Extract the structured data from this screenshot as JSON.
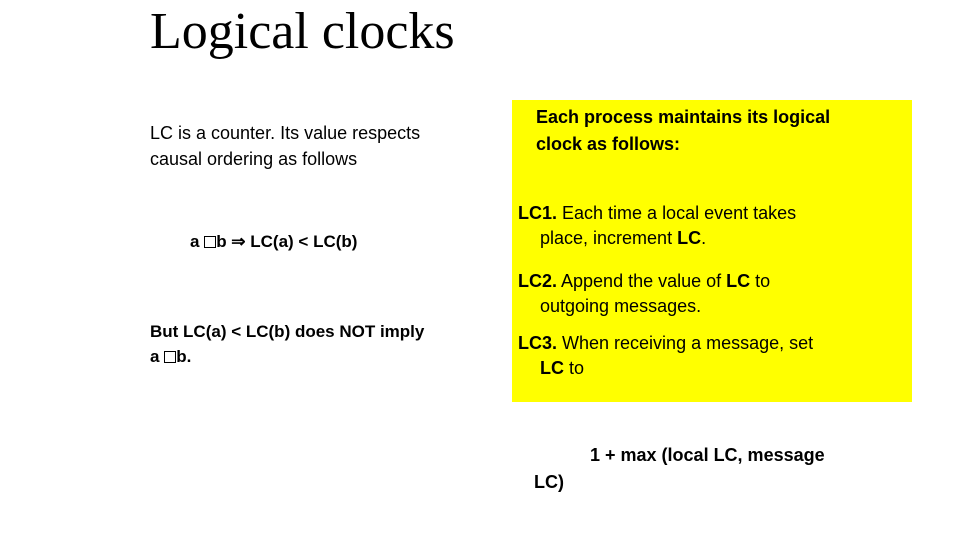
{
  "title": "Logical clocks",
  "left": {
    "intro_line1": "LC is a counter. Its value respects",
    "intro_line2": "causal ordering as follows",
    "formula_a": "a ",
    "formula_b": "b ⇒ LC(a) < LC(b)",
    "caveat_line1": "But LC(a) < LC(b) does NOT imply",
    "caveat_a": "a ",
    "caveat_b": "b."
  },
  "right": {
    "intro": "Each process maintains its logical clock as follows:",
    "rule1_label": "LC1.",
    "rule1_text_a": "  Each time a local event takes",
    "rule1_text_b_prefix": "place, increment ",
    "rule1_text_b_lc": "LC",
    "rule1_text_b_suffix": ".",
    "rule2_label": "LC2.",
    "rule2_text_a_prefix": "  Append the value of ",
    "rule2_text_a_lc": "LC",
    "rule2_text_a_suffix": " to",
    "rule2_text_b": "outgoing messages.",
    "rule3_label": "LC3.",
    "rule3_text_a": "  When receiving a message, set",
    "rule3_text_b_lc": "LC",
    "rule3_text_b_suffix": " to",
    "formula_line1": "1 + max (local LC, message",
    "formula_line2": "LC)"
  },
  "colors": {
    "highlight_bg": "#ffff00",
    "text": "#000000",
    "page_bg": "#ffffff"
  },
  "typography": {
    "title_family": "Times New Roman",
    "title_size_pt": 39,
    "body_family": "Arial",
    "body_size_pt": 13
  }
}
